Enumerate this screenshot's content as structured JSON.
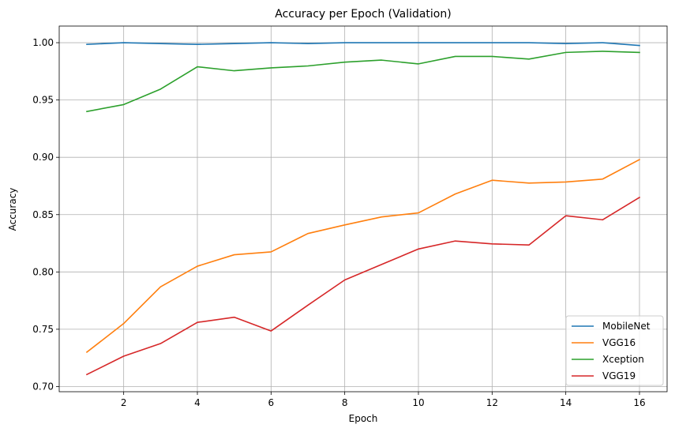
{
  "chart_data": {
    "type": "line",
    "title": "Accuracy per Epoch (Validation)",
    "xlabel": "Epoch",
    "ylabel": "Accuracy",
    "x": [
      1,
      2,
      3,
      4,
      5,
      6,
      7,
      8,
      9,
      10,
      11,
      12,
      13,
      14,
      15,
      16
    ],
    "xticks": [
      2,
      4,
      6,
      8,
      10,
      12,
      14,
      16
    ],
    "yticks": [
      0.7,
      0.75,
      0.8,
      0.85,
      0.9,
      0.95,
      1.0
    ],
    "ytick_labels": [
      "0.70",
      "0.75",
      "0.80",
      "0.85",
      "0.90",
      "0.95",
      "1.00"
    ],
    "xlim": [
      0.25,
      16.75
    ],
    "ylim": [
      0.6955,
      1.0145
    ],
    "grid": true,
    "legend_position": "bottom-right",
    "series": [
      {
        "name": "MobileNet",
        "color": "#1f77b4",
        "values": [
          0.9985,
          1.0,
          0.9992,
          0.9985,
          0.9992,
          1.0,
          0.9992,
          1.0,
          1.0,
          1.0,
          1.0,
          1.0,
          1.0,
          0.9992,
          1.0,
          0.9975
        ]
      },
      {
        "name": "VGG16",
        "color": "#ff7f0e",
        "values": [
          0.73,
          0.755,
          0.787,
          0.805,
          0.815,
          0.8175,
          0.8335,
          0.841,
          0.848,
          0.8515,
          0.868,
          0.88,
          0.8775,
          0.8785,
          0.881,
          0.898
        ]
      },
      {
        "name": "Xception",
        "color": "#2ca02c",
        "values": [
          0.94,
          0.946,
          0.9595,
          0.979,
          0.9755,
          0.978,
          0.9797,
          0.983,
          0.9848,
          0.9815,
          0.988,
          0.988,
          0.9857,
          0.9915,
          0.9925,
          0.9915
        ]
      },
      {
        "name": "VGG19",
        "color": "#d62728",
        "values": [
          0.7105,
          0.7265,
          0.7375,
          0.756,
          0.7605,
          0.7485,
          0.771,
          0.793,
          0.8065,
          0.82,
          0.827,
          0.8245,
          0.8235,
          0.849,
          0.8455,
          0.865
        ]
      }
    ]
  }
}
